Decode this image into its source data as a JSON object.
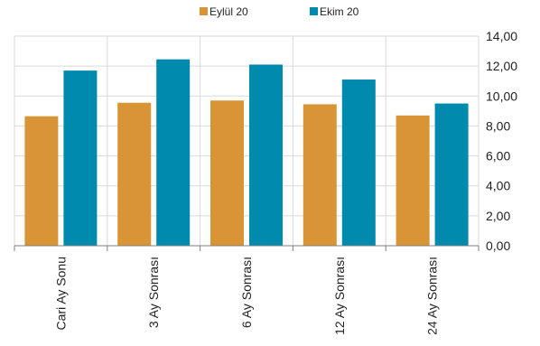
{
  "chart_data": {
    "type": "bar",
    "categories": [
      "Cari Ay Sonu",
      "3 Ay Sonrası",
      "6 Ay Sonrası",
      "12 Ay Sonrası",
      "24 Ay Sonrası"
    ],
    "series": [
      {
        "name": "Eylül 20",
        "color": "#D99535",
        "values": [
          8.65,
          9.55,
          9.7,
          9.45,
          8.7
        ]
      },
      {
        "name": "Ekim 20",
        "color": "#008AAD",
        "values": [
          11.7,
          12.45,
          12.1,
          11.1,
          9.5
        ]
      }
    ],
    "yticks": [
      "0,00",
      "2,00",
      "4,00",
      "6,00",
      "8,00",
      "10,00",
      "12,00",
      "14,00"
    ],
    "ylim": [
      0,
      14
    ],
    "y_axis_side": "right",
    "grid": true,
    "legend_position": "top"
  }
}
